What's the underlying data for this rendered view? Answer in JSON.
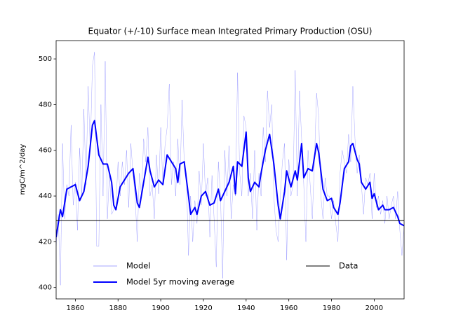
{
  "chart_data": {
    "type": "line",
    "title": "Equator (+/-10) Surface mean Integrated Primary Production (OSU)",
    "y_label": "mgC/m^2/day",
    "xlim": [
      1851,
      2014
    ],
    "ylim": [
      395,
      508
    ],
    "xticks": [
      1860,
      1880,
      1900,
      1920,
      1940,
      1960,
      1980,
      2000
    ],
    "yticks": [
      400,
      420,
      440,
      460,
      480,
      500
    ],
    "grid": false,
    "legend": "lower center",
    "series": [
      {
        "name": "Model",
        "color": "#0000ff",
        "width": 0.5,
        "opacity": 0.35,
        "x": [
          1851,
          1852,
          1853,
          1854,
          1855,
          1856,
          1857,
          1858,
          1859,
          1860,
          1861,
          1862,
          1863,
          1864,
          1865,
          1866,
          1867,
          1868,
          1869,
          1870,
          1871,
          1872,
          1873,
          1874,
          1875,
          1876,
          1877,
          1878,
          1879,
          1880,
          1881,
          1882,
          1883,
          1884,
          1885,
          1886,
          1887,
          1888,
          1889,
          1890,
          1891,
          1892,
          1893,
          1894,
          1895,
          1896,
          1897,
          1898,
          1899,
          1900,
          1901,
          1902,
          1903,
          1904,
          1905,
          1906,
          1907,
          1908,
          1909,
          1910,
          1911,
          1912,
          1913,
          1914,
          1915,
          1916,
          1917,
          1918,
          1919,
          1920,
          1921,
          1922,
          1923,
          1924,
          1925,
          1926,
          1927,
          1928,
          1929,
          1930,
          1931,
          1932,
          1933,
          1934,
          1935,
          1936,
          1937,
          1938,
          1939,
          1940,
          1941,
          1942,
          1943,
          1944,
          1945,
          1946,
          1947,
          1948,
          1949,
          1950,
          1951,
          1952,
          1953,
          1954,
          1955,
          1956,
          1957,
          1958,
          1959,
          1960,
          1961,
          1962,
          1963,
          1964,
          1965,
          1966,
          1967,
          1968,
          1969,
          1970,
          1971,
          1972,
          1973,
          1974,
          1975,
          1976,
          1977,
          1978,
          1979,
          1980,
          1981,
          1982,
          1983,
          1984,
          1985,
          1986,
          1987,
          1988,
          1989,
          1990,
          1991,
          1992,
          1993,
          1994,
          1995,
          1996,
          1997,
          1998,
          1999,
          2000,
          2001,
          2002,
          2003,
          2004,
          2005,
          2006,
          2007,
          2008,
          2009,
          2010,
          2011,
          2012,
          2013,
          2014
        ],
        "values": [
          418,
          432,
          401,
          463,
          430,
          445,
          440,
          471,
          436,
          446,
          425,
          461,
          440,
          478,
          445,
          488,
          460,
          497,
          503,
          418,
          418,
          480,
          440,
          499,
          430,
          450,
          432,
          434,
          435,
          455,
          440,
          455,
          445,
          460,
          435,
          463,
          450,
          440,
          420,
          450,
          440,
          465,
          455,
          470,
          440,
          445,
          430,
          458,
          441,
          470,
          445,
          462,
          470,
          489,
          445,
          455,
          440,
          465,
          445,
          482,
          455,
          450,
          414,
          440,
          420,
          438,
          428,
          451,
          436,
          463,
          440,
          448,
          422,
          449,
          430,
          409,
          455,
          440,
          404,
          460,
          440,
          462,
          430,
          445,
          440,
          494,
          450,
          440,
          475,
          470,
          440,
          450,
          430,
          460,
          425,
          450,
          440,
          470,
          455,
          486,
          470,
          480,
          440,
          425,
          420,
          440,
          455,
          463,
          412,
          456,
          440,
          445,
          495,
          440,
          486,
          465,
          445,
          420,
          460,
          445,
          430,
          455,
          485,
          475,
          440,
          430,
          448,
          440,
          440,
          430,
          438,
          428,
          420,
          450,
          460,
          455,
          450,
          467,
          455,
          488,
          465,
          450,
          458,
          445,
          432,
          448,
          445,
          450,
          430,
          450,
          435,
          440,
          432,
          438,
          428,
          440,
          430,
          436,
          440,
          430,
          442,
          425,
          414,
          427
        ]
      },
      {
        "name": "Model 5yr moving average",
        "color": "#0000ff",
        "width": 2,
        "opacity": 1,
        "x": [
          1851,
          1853,
          1854,
          1856,
          1858,
          1860,
          1862,
          1864,
          1866,
          1868,
          1869,
          1871,
          1873,
          1875,
          1877,
          1878,
          1879,
          1881,
          1883,
          1885,
          1887,
          1889,
          1890,
          1892,
          1894,
          1895,
          1897,
          1899,
          1901,
          1903,
          1905,
          1907,
          1908,
          1909,
          1911,
          1913,
          1914,
          1916,
          1917,
          1919,
          1921,
          1923,
          1925,
          1927,
          1928,
          1930,
          1932,
          1934,
          1935,
          1936,
          1938,
          1940,
          1941,
          1942,
          1944,
          1946,
          1947,
          1949,
          1951,
          1953,
          1955,
          1956,
          1958,
          1959,
          1961,
          1963,
          1964,
          1966,
          1967,
          1969,
          1971,
          1973,
          1974,
          1976,
          1978,
          1980,
          1981,
          1983,
          1984,
          1986,
          1988,
          1989,
          1990,
          1992,
          1993,
          1994,
          1996,
          1998,
          1999,
          2000,
          2002,
          2004,
          2005,
          2007,
          2009,
          2011,
          2012,
          2014
        ],
        "values": [
          422,
          434,
          431,
          443,
          444,
          445,
          438,
          442,
          453,
          471,
          473,
          458,
          454,
          454,
          446,
          436,
          434,
          444,
          447,
          450,
          452,
          437,
          435,
          446,
          457,
          451,
          444,
          447,
          445,
          458,
          455,
          452,
          446,
          454,
          455,
          440,
          432,
          435,
          432,
          440,
          442,
          436,
          437,
          443,
          438,
          442,
          446,
          453,
          441,
          455,
          453,
          468,
          448,
          442,
          446,
          444,
          450,
          460,
          467,
          454,
          436,
          430,
          442,
          451,
          444,
          451,
          447,
          463,
          448,
          452,
          451,
          463,
          459,
          443,
          438,
          439,
          435,
          432,
          437,
          452,
          455,
          462,
          463,
          456,
          454,
          446,
          443,
          446,
          439,
          441,
          434,
          436,
          434,
          434,
          435,
          431,
          428,
          427
        ]
      },
      {
        "name": "Data",
        "color": "#000000",
        "width": 1,
        "opacity": 1,
        "x": [
          1851,
          2014
        ],
        "values": [
          429.3,
          429.3
        ]
      }
    ]
  }
}
